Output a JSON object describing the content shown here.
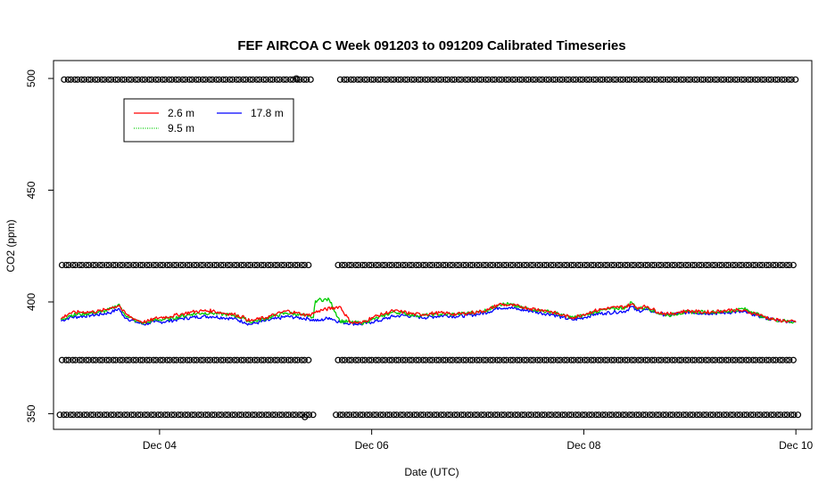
{
  "chart_data": {
    "type": "line",
    "title": "FEF AIRCOA C  Week 091203 to 091209  Calibrated Timeseries",
    "xlabel": "Date (UTC)",
    "ylabel": "CO2 (ppm)",
    "xlim": [
      3.0,
      10.15
    ],
    "ylim": [
      343,
      508
    ],
    "x_ticks": [
      {
        "value": 4,
        "label": "Dec 04"
      },
      {
        "value": 6,
        "label": "Dec 06"
      },
      {
        "value": 8,
        "label": "Dec 08"
      },
      {
        "value": 10,
        "label": "Dec 10"
      }
    ],
    "y_ticks": [
      {
        "value": 350,
        "label": "350"
      },
      {
        "value": 400,
        "label": "400"
      },
      {
        "value": 450,
        "label": "450"
      },
      {
        "value": 500,
        "label": "500"
      }
    ],
    "legend_position": "top-left",
    "legend": [
      {
        "label": "2.6 m",
        "color": "#ff0000",
        "style": "solid"
      },
      {
        "label": "9.5 m",
        "color": "#00cd00",
        "style": "dotted"
      },
      {
        "label": "17.8 m",
        "color": "#0000ff",
        "style": "solid"
      }
    ],
    "series": [
      {
        "name": "17.8 m",
        "color": "#0000ff",
        "x": [
          3.07,
          3.15,
          3.25,
          3.35,
          3.45,
          3.55,
          3.62,
          3.65,
          3.7,
          3.78,
          3.85,
          3.9,
          3.95,
          4.0,
          4.1,
          4.2,
          4.3,
          4.4,
          4.5,
          4.6,
          4.7,
          4.8,
          4.85,
          4.9,
          5.0,
          5.1,
          5.2,
          5.3,
          5.4,
          5.5,
          5.6,
          5.7,
          5.8,
          5.9,
          6.0,
          6.1,
          6.2,
          6.3,
          6.4,
          6.5,
          6.6,
          6.7,
          6.8,
          6.9,
          7.0,
          7.1,
          7.2,
          7.3,
          7.4,
          7.5,
          7.6,
          7.7,
          7.8,
          7.9,
          8.0,
          8.1,
          8.2,
          8.3,
          8.4,
          8.45,
          8.5,
          8.6,
          8.7,
          8.8,
          8.9,
          9.0,
          9.1,
          9.2,
          9.3,
          9.4,
          9.5,
          9.6,
          9.7,
          9.8,
          9.9,
          10.0
        ],
        "values": [
          391.5,
          393.0,
          393.5,
          394.0,
          394.5,
          395.5,
          397.0,
          394.0,
          392.5,
          391.0,
          390.0,
          390.5,
          391.0,
          391.0,
          391.5,
          392.5,
          393.0,
          393.5,
          393.5,
          393.0,
          392.5,
          391.0,
          390.0,
          390.5,
          391.5,
          392.5,
          393.5,
          393.0,
          392.5,
          391.5,
          393.0,
          391.0,
          390.5,
          390.0,
          391.0,
          392.0,
          393.5,
          394.0,
          393.5,
          393.0,
          393.5,
          394.0,
          393.5,
          394.0,
          394.5,
          395.5,
          397.5,
          397.5,
          396.5,
          396.0,
          395.0,
          394.5,
          393.0,
          392.0,
          393.0,
          394.5,
          395.0,
          395.5,
          396.0,
          398.0,
          396.0,
          396.5,
          395.0,
          394.0,
          395.0,
          395.5,
          395.0,
          395.0,
          395.0,
          395.5,
          395.5,
          394.5,
          393.0,
          392.0,
          391.5,
          391.0
        ]
      },
      {
        "name": "9.5 m",
        "color": "#00cd00",
        "x": [
          3.07,
          3.15,
          3.25,
          3.35,
          3.45,
          3.55,
          3.62,
          3.65,
          3.7,
          3.78,
          3.85,
          3.9,
          3.95,
          4.0,
          4.1,
          4.2,
          4.3,
          4.4,
          4.5,
          4.6,
          4.7,
          4.8,
          4.85,
          4.9,
          5.0,
          5.1,
          5.2,
          5.3,
          5.35,
          5.4,
          5.45,
          5.47,
          5.5,
          5.6,
          5.7,
          5.8,
          5.9,
          6.0,
          6.1,
          6.2,
          6.3,
          6.4,
          6.5,
          6.6,
          6.7,
          6.8,
          6.9,
          7.0,
          7.1,
          7.2,
          7.3,
          7.4,
          7.5,
          7.6,
          7.7,
          7.8,
          7.9,
          8.0,
          8.1,
          8.2,
          8.3,
          8.4,
          8.45,
          8.5,
          8.6,
          8.7,
          8.8,
          8.9,
          9.0,
          9.1,
          9.2,
          9.3,
          9.4,
          9.5,
          9.6,
          9.7,
          9.8,
          9.9,
          10.0
        ],
        "values": [
          392.0,
          394.0,
          394.5,
          395.0,
          395.5,
          397.0,
          399.0,
          395.5,
          393.5,
          391.5,
          390.5,
          391.0,
          392.0,
          392.0,
          392.5,
          393.5,
          394.5,
          395.0,
          395.0,
          394.5,
          394.0,
          392.5,
          391.0,
          391.5,
          392.5,
          394.0,
          395.0,
          394.5,
          394.0,
          393.5,
          393.0,
          400.5,
          401.0,
          401.0,
          391.5,
          391.0,
          390.5,
          392.0,
          393.5,
          395.5,
          395.0,
          394.0,
          394.0,
          394.5,
          394.5,
          394.5,
          395.0,
          395.5,
          396.5,
          399.0,
          399.0,
          397.5,
          397.0,
          396.0,
          395.5,
          394.0,
          393.0,
          394.0,
          395.5,
          396.5,
          397.0,
          397.5,
          400.0,
          397.0,
          397.5,
          395.0,
          394.0,
          395.0,
          395.5,
          395.5,
          395.5,
          395.5,
          396.0,
          397.0,
          395.5,
          393.0,
          392.0,
          391.5,
          391.0
        ]
      },
      {
        "name": "2.6 m",
        "color": "#ff0000",
        "x": [
          3.07,
          3.15,
          3.25,
          3.35,
          3.45,
          3.55,
          3.62,
          3.65,
          3.7,
          3.78,
          3.85,
          3.9,
          3.95,
          4.0,
          4.1,
          4.2,
          4.3,
          4.4,
          4.5,
          4.6,
          4.7,
          4.8,
          4.85,
          4.9,
          5.0,
          5.1,
          5.2,
          5.3,
          5.35,
          5.4,
          5.5,
          5.7,
          5.8,
          5.9,
          6.0,
          6.1,
          6.2,
          6.3,
          6.4,
          6.5,
          6.6,
          6.7,
          6.8,
          6.9,
          7.0,
          7.1,
          7.2,
          7.3,
          7.4,
          7.5,
          7.6,
          7.7,
          7.8,
          7.9,
          8.0,
          8.1,
          8.2,
          8.3,
          8.4,
          8.45,
          8.5,
          8.6,
          8.7,
          8.8,
          8.9,
          9.0,
          9.1,
          9.2,
          9.3,
          9.4,
          9.5,
          9.6,
          9.7,
          9.8,
          9.9,
          10.0
        ],
        "values": [
          392.5,
          395.0,
          395.5,
          395.5,
          396.0,
          397.5,
          398.5,
          396.0,
          394.0,
          392.0,
          391.0,
          391.5,
          392.5,
          393.0,
          393.5,
          394.5,
          395.5,
          396.0,
          396.0,
          395.0,
          394.5,
          393.0,
          391.5,
          392.0,
          393.0,
          394.5,
          396.0,
          395.0,
          394.5,
          394.0,
          396.0,
          398.0,
          391.0,
          390.5,
          393.0,
          394.5,
          396.0,
          395.5,
          394.5,
          394.5,
          395.0,
          395.0,
          394.5,
          395.0,
          395.5,
          396.5,
          399.0,
          398.5,
          398.0,
          397.0,
          396.5,
          395.5,
          394.0,
          393.0,
          394.5,
          396.0,
          397.0,
          397.5,
          398.0,
          399.0,
          397.5,
          398.0,
          395.5,
          394.5,
          395.5,
          396.0,
          395.5,
          395.5,
          396.0,
          396.5,
          396.0,
          395.0,
          393.5,
          392.0,
          391.5,
          391.0
        ]
      }
    ],
    "calibration_markers": [
      {
        "level": 499.5,
        "x_start": 3.1,
        "x_end": 10.0,
        "gaps": [
          [
            5.42,
            5.67
          ]
        ]
      },
      {
        "level": 416.5,
        "x_start": 3.08,
        "x_end": 10.0,
        "gaps": [
          [
            5.42,
            5.65
          ]
        ]
      },
      {
        "level": 374.0,
        "x_start": 3.08,
        "x_end": 10.0,
        "gaps": [
          [
            5.42,
            5.65
          ]
        ]
      },
      {
        "level": 349.5,
        "x_start": 3.06,
        "x_end": 10.0,
        "gaps": [
          [
            5.42,
            5.63
          ]
        ]
      }
    ],
    "extra_markers": [
      {
        "x": 5.29,
        "y": 500.0
      },
      {
        "x": 5.37,
        "y": 348.5
      }
    ]
  }
}
